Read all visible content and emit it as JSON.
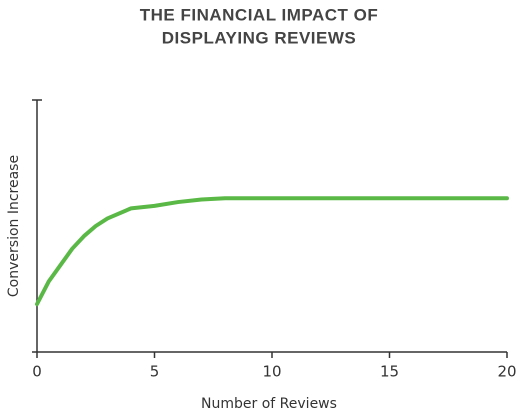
{
  "chart_data": {
    "type": "line",
    "title": [
      "THE FINANCIAL IMPACT OF",
      "DISPLAYING REVIEWS"
    ],
    "x_label": "Number of Reviews",
    "y_label": "Conversion Increase",
    "x": [
      0,
      0.5,
      1,
      1.5,
      2,
      2.5,
      3,
      4,
      5,
      6,
      7,
      8,
      10,
      12,
      15,
      20
    ],
    "series": [
      {
        "color": "#5ab946",
        "values": [
          0.19,
          0.28,
          0.345,
          0.41,
          0.46,
          0.5,
          0.53,
          0.57,
          0.58,
          0.595,
          0.605,
          0.61,
          0.61,
          0.61,
          0.61,
          0.61
        ]
      }
    ],
    "xlim": [
      0,
      20
    ],
    "xticks": [
      0,
      5,
      10,
      15,
      20
    ],
    "ylim": [
      0,
      1
    ]
  }
}
